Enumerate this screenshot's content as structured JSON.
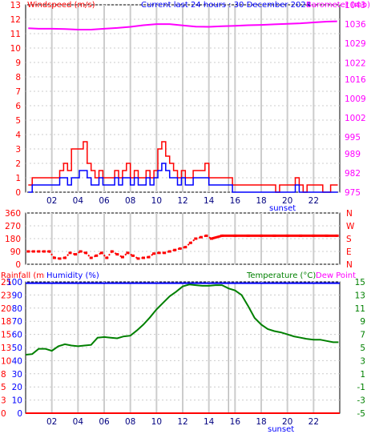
{
  "header": {
    "left_label": "Windspeed (m/s)",
    "center_label": "Current last 24 hours : 30 December 2024",
    "right_label": "Barometer (mb)"
  },
  "lower_header": {
    "rainfall_label": "Rainfall (mm)",
    "humidity_label": "Humidity (%)",
    "temperature_label": "Temperature (°C)",
    "dewpoint_label": "Dew Point"
  },
  "x_axis": {
    "hour_ticks": [
      "02",
      "04",
      "06",
      "08",
      "10",
      "12",
      "14",
      "16",
      "18",
      "20",
      "22"
    ],
    "sunset_label": "sunset"
  },
  "colors": {
    "wind_avg": "#0000ff",
    "wind_gust": "#ff0000",
    "barometer": "#ff00ff",
    "direction": "#ff0000",
    "temperature": "#008000",
    "humidity": "#0000ff",
    "rainfall": "#ff0000",
    "grid": "#cccccc"
  },
  "chart_data": [
    {
      "type": "line",
      "x_range_hours": [
        0,
        24
      ],
      "left_axis": {
        "label": "Windspeed (m/s)",
        "ylim": [
          0,
          13
        ],
        "ticks": [
          "0",
          "1",
          "2",
          "3",
          "4",
          "5",
          "6",
          "7",
          "8",
          "9",
          "10",
          "11",
          "12",
          "13"
        ]
      },
      "right_axis": {
        "label": "Barometer (mb)",
        "ylim": [
          975,
          1043
        ],
        "ticks": [
          "975",
          "982",
          "989",
          "995",
          "1002",
          "1009",
          "1016",
          "1022",
          "1029",
          "1036",
          "1043"
        ]
      },
      "series": [
        {
          "name": "Barometer",
          "axis": "right",
          "x": [
            0.2,
            1,
            2,
            3,
            4,
            5,
            6,
            7,
            8,
            9,
            10,
            11,
            12,
            13,
            14,
            15,
            16,
            17,
            18,
            19,
            20,
            21,
            22,
            23,
            23.8
          ],
          "y": [
            1034.5,
            1034.3,
            1034.3,
            1034.2,
            1034.0,
            1034.0,
            1034.3,
            1034.6,
            1035.0,
            1035.6,
            1036.0,
            1036.0,
            1035.5,
            1035.1,
            1035.0,
            1035.2,
            1035.4,
            1035.6,
            1035.7,
            1035.9,
            1036.1,
            1036.3,
            1036.6,
            1036.9,
            1037.0
          ]
        },
        {
          "name": "Wind gust",
          "axis": "left",
          "x": [
            0.2,
            0.5,
            0.8,
            1.1,
            1.4,
            1.7,
            2.0,
            2.3,
            2.6,
            2.9,
            3.2,
            3.5,
            3.8,
            4.1,
            4.4,
            4.7,
            5.0,
            5.3,
            5.6,
            5.9,
            6.2,
            6.5,
            6.8,
            7.1,
            7.4,
            7.7,
            8.0,
            8.3,
            8.6,
            8.9,
            9.2,
            9.5,
            9.8,
            10.1,
            10.4,
            10.7,
            11.0,
            11.3,
            11.6,
            11.9,
            12.2,
            12.5,
            12.8,
            13.1,
            13.4,
            13.7,
            14.0,
            14.3,
            14.6,
            14.9,
            15.2,
            15.5,
            15.8,
            16.1,
            16.4,
            16.7,
            17.0,
            17.3,
            17.6,
            17.9,
            18.2,
            18.5,
            18.8,
            19.1,
            19.4,
            19.7,
            20.0,
            20.3,
            20.6,
            20.9,
            21.2,
            21.5,
            21.8,
            22.1,
            22.4,
            22.7,
            23.0,
            23.3,
            23.6
          ],
          "y": [
            0.5,
            1,
            1,
            1,
            1,
            1,
            1,
            1,
            1.5,
            2,
            1.5,
            3,
            3,
            3,
            3.5,
            2,
            1.5,
            1,
            1.5,
            1,
            1,
            1,
            1.5,
            1,
            1.5,
            2,
            1,
            1.5,
            1,
            1,
            1.5,
            1,
            1.5,
            3,
            3.5,
            2.5,
            2,
            1.5,
            1,
            1.5,
            1,
            1,
            1.5,
            1.5,
            1.5,
            2,
            1,
            1,
            1,
            1,
            1,
            1,
            0.5,
            0.5,
            0.5,
            0.5,
            0.5,
            0.5,
            0.5,
            0.5,
            0.5,
            0.5,
            0.5,
            0,
            0.5,
            0.5,
            0.5,
            0.5,
            1,
            0.5,
            0,
            0.5,
            0.5,
            0.5,
            0.5,
            0,
            0,
            0.5,
            0.5
          ]
        },
        {
          "name": "Wind average",
          "axis": "left",
          "x": [
            0.2,
            0.5,
            0.8,
            1.1,
            1.4,
            1.7,
            2.0,
            2.3,
            2.6,
            2.9,
            3.2,
            3.5,
            3.8,
            4.1,
            4.4,
            4.7,
            5.0,
            5.3,
            5.6,
            5.9,
            6.2,
            6.5,
            6.8,
            7.1,
            7.4,
            7.7,
            8.0,
            8.3,
            8.6,
            8.9,
            9.2,
            9.5,
            9.8,
            10.1,
            10.4,
            10.7,
            11.0,
            11.3,
            11.6,
            11.9,
            12.2,
            12.5,
            12.8,
            13.1,
            13.4,
            13.7,
            14.0,
            14.3,
            14.6,
            14.9,
            15.2,
            15.5,
            15.8,
            16.1,
            16.4,
            16.7,
            17.0,
            17.3,
            17.6,
            17.9,
            18.2,
            18.5,
            18.8,
            19.1,
            19.4,
            19.7,
            20.0,
            20.3,
            20.6,
            20.9,
            21.2,
            21.5,
            21.8,
            22.1,
            22.4,
            22.7,
            23.0,
            23.3,
            23.6
          ],
          "y": [
            0,
            0.5,
            0.5,
            0.5,
            0.5,
            0.5,
            0.5,
            0.5,
            1,
            1,
            0.5,
            1,
            1,
            1.5,
            1.5,
            1,
            0.5,
            0.5,
            1,
            0.5,
            0.5,
            0.5,
            1,
            0.5,
            1,
            1,
            0.5,
            1,
            0.5,
            0.5,
            1,
            0.5,
            1,
            1.5,
            2,
            1.5,
            1,
            1,
            0.5,
            1,
            0.5,
            0.5,
            1,
            1,
            1,
            1,
            0.5,
            0.5,
            0.5,
            0.5,
            0.5,
            0.5,
            0,
            0,
            0,
            0,
            0,
            0,
            0,
            0,
            0,
            0,
            0,
            0,
            0,
            0,
            0,
            0,
            0.5,
            0,
            0,
            0,
            0,
            0,
            0,
            0,
            0,
            0,
            0
          ]
        }
      ],
      "sunset_hour": 15.5
    },
    {
      "type": "scatter",
      "x_range_hours": [
        0,
        24
      ],
      "left_axis": {
        "label": "",
        "ylim": [
          0,
          360
        ],
        "ticks": [
          "0",
          "90",
          "180",
          "270",
          "360"
        ]
      },
      "right_axis": {
        "label": "",
        "ticks": [
          "N",
          "E",
          "S",
          "W",
          "N"
        ]
      },
      "series": [
        {
          "name": "Wind direction",
          "x": [
            0.2,
            0.6,
            1.0,
            1.4,
            1.8,
            2.2,
            2.6,
            3.0,
            3.4,
            3.8,
            4.2,
            4.6,
            5.0,
            5.4,
            5.8,
            6.2,
            6.6,
            7.0,
            7.4,
            7.8,
            8.2,
            8.6,
            9.0,
            9.4,
            9.8,
            10.2,
            10.6,
            11.0,
            11.4,
            11.8,
            12.2,
            12.6,
            13.0,
            13.4,
            13.8,
            14.2,
            15,
            16,
            17,
            18,
            19,
            20,
            21,
            22,
            23,
            23.8
          ],
          "y": [
            90,
            90,
            90,
            90,
            90,
            45,
            40,
            45,
            80,
            70,
            90,
            80,
            45,
            60,
            80,
            45,
            90,
            70,
            50,
            80,
            60,
            40,
            45,
            50,
            75,
            80,
            80,
            90,
            100,
            110,
            120,
            150,
            180,
            190,
            200,
            180,
            200,
            200,
            200,
            200,
            200,
            200,
            200,
            200,
            200,
            200
          ]
        }
      ]
    },
    {
      "type": "line",
      "x_range_hours": [
        0,
        24
      ],
      "left_axis": {
        "label": "Humidity (%)",
        "ylim": [
          0,
          100
        ],
        "ticks": [
          "0",
          "10",
          "20",
          "30",
          "40",
          "50",
          "60",
          "70",
          "80",
          "90",
          "100"
        ]
      },
      "right_axis": {
        "label": "Temperature (°C)",
        "ylim": [
          -5,
          15
        ],
        "ticks": [
          "-5",
          "-3",
          "-1",
          "1",
          "3",
          "5",
          "7",
          "9",
          "11",
          "13",
          "15"
        ]
      },
      "rain_axis": {
        "label": "Rainfall (mm)",
        "ticks": [
          "0",
          "3",
          "5",
          "8",
          "10",
          "13",
          "15",
          "18",
          "20",
          "23",
          "25"
        ]
      },
      "series": [
        {
          "name": "Temperature",
          "axis": "right",
          "x": [
            0,
            0.5,
            1,
            1.5,
            2,
            2.5,
            3,
            3.5,
            4,
            4.5,
            5,
            5.5,
            6,
            6.5,
            7,
            7.5,
            8,
            8.5,
            9,
            9.5,
            10,
            10.5,
            11,
            11.5,
            12,
            12.5,
            13,
            13.5,
            14,
            14.5,
            15,
            15.5,
            16,
            16.5,
            17,
            17.5,
            18,
            18.5,
            19,
            19.5,
            20,
            20.5,
            21,
            21.5,
            22,
            22.5,
            23,
            23.5,
            23.9
          ],
          "y": [
            3.9,
            4.0,
            4.8,
            4.8,
            4.5,
            5.2,
            5.5,
            5.3,
            5.2,
            5.3,
            5.4,
            6.5,
            6.6,
            6.5,
            6.4,
            6.7,
            6.8,
            7.6,
            8.5,
            9.6,
            10.8,
            11.8,
            12.8,
            13.5,
            14.3,
            14.6,
            14.5,
            14.4,
            14.4,
            14.5,
            14.5,
            14.0,
            13.7,
            13.0,
            11.3,
            9.5,
            8.5,
            7.8,
            7.5,
            7.3,
            7.0,
            6.7,
            6.5,
            6.3,
            6.2,
            6.2,
            6.0,
            5.8,
            5.8
          ]
        },
        {
          "name": "Humidity",
          "axis": "left",
          "x": [
            0,
            24
          ],
          "y": [
            99,
            99
          ]
        },
        {
          "name": "Rainfall",
          "axis": "rain",
          "x": [
            0,
            24
          ],
          "y": [
            0,
            0
          ]
        }
      ],
      "sunset_hour": 15.5
    }
  ]
}
